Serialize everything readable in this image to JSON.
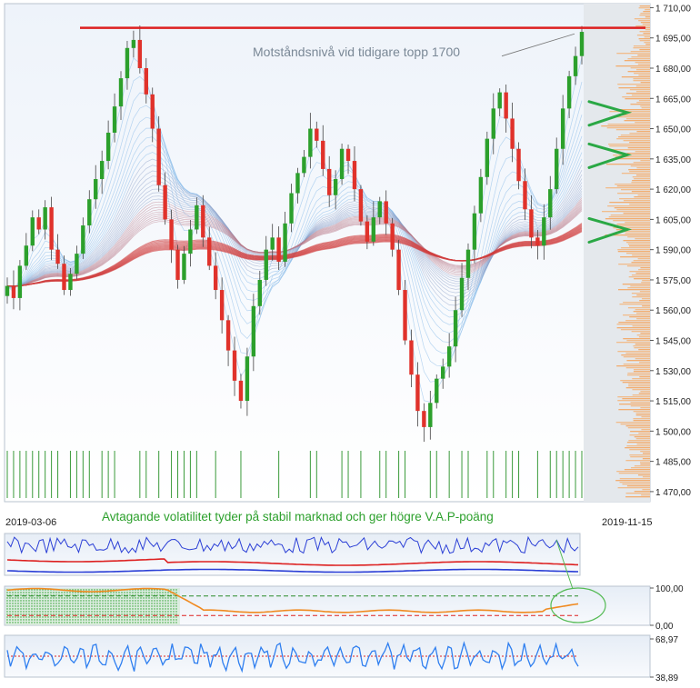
{
  "chart_data": [
    {
      "type": "candlestick",
      "panel": "price",
      "x_start_label": "2019-03-06",
      "x_end_label": "2019-11-15",
      "y_ticks": [
        "1 710,00",
        "1 695,00",
        "1 680,00",
        "1 665,00",
        "1 650,00",
        "1 635,00",
        "1 620,00",
        "1 605,00",
        "1 590,00",
        "1 575,00",
        "1 560,00",
        "1 545,00",
        "1 530,00",
        "1 515,00",
        "1 500,00",
        "1 485,00",
        "1 470,00"
      ],
      "ylim": [
        1465,
        1712
      ],
      "resistance_level": 1700,
      "annotations": {
        "resistance": "Motståndsnivå vid tidigare topp 1700",
        "volatility": "Avtagande volatilitet tyder på stabil marknad och ger högre V.A.P-poäng"
      },
      "closes": [
        1572,
        1566,
        1582,
        1592,
        1606,
        1600,
        1611,
        1590,
        1583,
        1570,
        1578,
        1588,
        1602,
        1615,
        1625,
        1634,
        1648,
        1661,
        1675,
        1690,
        1694,
        1680,
        1667,
        1650,
        1622,
        1605,
        1590,
        1575,
        1588,
        1600,
        1612,
        1596,
        1582,
        1570,
        1555,
        1540,
        1525,
        1515,
        1537,
        1562,
        1575,
        1590,
        1596,
        1584,
        1603,
        1618,
        1628,
        1636,
        1650,
        1644,
        1630,
        1617,
        1625,
        1640,
        1634,
        1620,
        1604,
        1594,
        1606,
        1614,
        1603,
        1590,
        1570,
        1545,
        1528,
        1510,
        1502,
        1514,
        1526,
        1532,
        1542,
        1560,
        1576,
        1590,
        1608,
        1626,
        1645,
        1660,
        1668,
        1655,
        1640,
        1624,
        1610,
        1596,
        1592,
        1606,
        1620,
        1640,
        1660,
        1676,
        1686,
        1698
      ],
      "volume_profile": true,
      "colors": {
        "up": "#2ca02c",
        "down": "#e0322b",
        "resistance": "#dd1f1f",
        "arrows": "#2aa845"
      }
    },
    {
      "type": "line",
      "panel": "volatility",
      "series": [
        {
          "color": "#2b3fd6",
          "level": "high"
        },
        {
          "color": "#dd2020",
          "level": "mid"
        },
        {
          "color": "#2b3fd6",
          "level": "low"
        }
      ]
    },
    {
      "type": "line",
      "panel": "vap",
      "y_ticks": [
        "100,00",
        "0,00"
      ],
      "ylim": [
        0,
        100
      ],
      "upper_level": 75,
      "lower_level": 25,
      "series": [
        {
          "color": "#f08a20"
        }
      ]
    },
    {
      "type": "line",
      "panel": "oscillator",
      "y_ticks": [
        "68,97",
        "38,89"
      ],
      "series": [
        {
          "color": "#2f7ff0"
        }
      ],
      "midline_color": "#dd2020"
    }
  ]
}
